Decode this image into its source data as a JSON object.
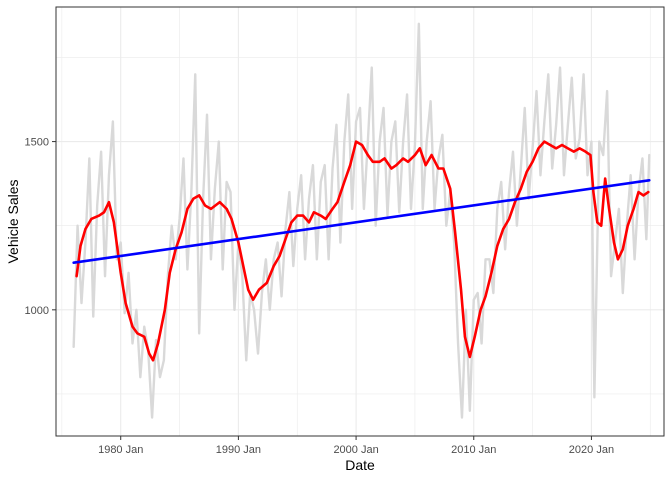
{
  "chart_data": {
    "type": "line",
    "xlabel": "Date",
    "ylabel": "Vehicle Sales",
    "x_ticks": [
      "1980 Jan",
      "1990 Jan",
      "2000 Jan",
      "2010 Jan",
      "2020 Jan"
    ],
    "x_tick_years": [
      1980,
      1990,
      2000,
      2010,
      2020
    ],
    "y_ticks": [
      1000,
      1500
    ],
    "xlim": [
      "1974-07",
      "2026-03"
    ],
    "ylim": [
      625,
      1900
    ],
    "grid": true,
    "legend": "none",
    "colors": {
      "raw": "#d9d9d9",
      "smoothed": "#ff0000",
      "trend": "#0000ff",
      "grid": "#ebebeb",
      "panel_border": "#333333"
    },
    "series": [
      {
        "role": "raw monthly",
        "points": [
          [
            "1976-01",
            890
          ],
          [
            "1976-05",
            1250
          ],
          [
            "1976-09",
            1020
          ],
          [
            "1977-01",
            1200
          ],
          [
            "1977-05",
            1450
          ],
          [
            "1977-09",
            980
          ],
          [
            "1978-01",
            1310
          ],
          [
            "1978-05",
            1470
          ],
          [
            "1978-09",
            1100
          ],
          [
            "1979-01",
            1400
          ],
          [
            "1979-05",
            1560
          ],
          [
            "1979-09",
            1150
          ],
          [
            "1980-01",
            1200
          ],
          [
            "1980-05",
            990
          ],
          [
            "1980-09",
            1110
          ],
          [
            "1981-01",
            900
          ],
          [
            "1981-05",
            1000
          ],
          [
            "1981-09",
            800
          ],
          [
            "1982-01",
            950
          ],
          [
            "1982-05",
            880
          ],
          [
            "1982-09",
            680
          ],
          [
            "1983-01",
            910
          ],
          [
            "1983-05",
            800
          ],
          [
            "1983-09",
            850
          ],
          [
            "1984-01",
            1100
          ],
          [
            "1984-05",
            1250
          ],
          [
            "1984-09",
            1150
          ],
          [
            "1985-01",
            1270
          ],
          [
            "1985-05",
            1450
          ],
          [
            "1985-09",
            1120
          ],
          [
            "1986-01",
            1350
          ],
          [
            "1986-05",
            1700
          ],
          [
            "1986-09",
            930
          ],
          [
            "1987-01",
            1330
          ],
          [
            "1987-05",
            1580
          ],
          [
            "1987-09",
            1150
          ],
          [
            "1988-01",
            1360
          ],
          [
            "1988-05",
            1500
          ],
          [
            "1988-09",
            1120
          ],
          [
            "1989-01",
            1380
          ],
          [
            "1989-05",
            1350
          ],
          [
            "1989-09",
            1000
          ],
          [
            "1990-01",
            1200
          ],
          [
            "1990-05",
            1100
          ],
          [
            "1990-09",
            850
          ],
          [
            "1991-01",
            1050
          ],
          [
            "1991-05",
            1000
          ],
          [
            "1991-09",
            870
          ],
          [
            "1992-01",
            1050
          ],
          [
            "1992-05",
            1150
          ],
          [
            "1992-09",
            1000
          ],
          [
            "1993-01",
            1150
          ],
          [
            "1993-05",
            1200
          ],
          [
            "1993-09",
            1040
          ],
          [
            "1994-01",
            1240
          ],
          [
            "1994-05",
            1350
          ],
          [
            "1994-09",
            1130
          ],
          [
            "1995-01",
            1300
          ],
          [
            "1995-05",
            1400
          ],
          [
            "1995-09",
            1150
          ],
          [
            "1996-01",
            1330
          ],
          [
            "1996-05",
            1430
          ],
          [
            "1996-09",
            1150
          ],
          [
            "1997-01",
            1380
          ],
          [
            "1997-05",
            1430
          ],
          [
            "1997-09",
            1150
          ],
          [
            "1998-01",
            1420
          ],
          [
            "1998-05",
            1550
          ],
          [
            "1998-09",
            1200
          ],
          [
            "1999-01",
            1500
          ],
          [
            "1999-05",
            1640
          ],
          [
            "1999-09",
            1300
          ],
          [
            "2000-01",
            1560
          ],
          [
            "2000-05",
            1600
          ],
          [
            "2000-09",
            1300
          ],
          [
            "2001-01",
            1500
          ],
          [
            "2001-05",
            1720
          ],
          [
            "2001-09",
            1250
          ],
          [
            "2002-01",
            1500
          ],
          [
            "2002-05",
            1600
          ],
          [
            "2002-09",
            1280
          ],
          [
            "2003-01",
            1500
          ],
          [
            "2003-05",
            1560
          ],
          [
            "2003-09",
            1290
          ],
          [
            "2004-01",
            1500
          ],
          [
            "2004-05",
            1640
          ],
          [
            "2004-09",
            1300
          ],
          [
            "2005-01",
            1490
          ],
          [
            "2005-05",
            1850
          ],
          [
            "2005-09",
            1300
          ],
          [
            "2006-01",
            1500
          ],
          [
            "2006-05",
            1620
          ],
          [
            "2006-09",
            1300
          ],
          [
            "2007-01",
            1450
          ],
          [
            "2007-05",
            1520
          ],
          [
            "2007-09",
            1250
          ],
          [
            "2008-01",
            1350
          ],
          [
            "2008-05",
            1200
          ],
          [
            "2008-09",
            900
          ],
          [
            "2009-01",
            680
          ],
          [
            "2009-05",
            1000
          ],
          [
            "2009-09",
            700
          ],
          [
            "2010-01",
            1030
          ],
          [
            "2010-05",
            1050
          ],
          [
            "2010-09",
            900
          ],
          [
            "2011-01",
            1150
          ],
          [
            "2011-05",
            1150
          ],
          [
            "2011-09",
            1050
          ],
          [
            "2012-01",
            1300
          ],
          [
            "2012-05",
            1380
          ],
          [
            "2012-09",
            1180
          ],
          [
            "2013-01",
            1350
          ],
          [
            "2013-05",
            1470
          ],
          [
            "2013-09",
            1250
          ],
          [
            "2014-01",
            1420
          ],
          [
            "2014-05",
            1600
          ],
          [
            "2014-09",
            1330
          ],
          [
            "2015-01",
            1480
          ],
          [
            "2015-05",
            1650
          ],
          [
            "2015-09",
            1400
          ],
          [
            "2016-01",
            1560
          ],
          [
            "2016-05",
            1700
          ],
          [
            "2016-09",
            1420
          ],
          [
            "2017-01",
            1550
          ],
          [
            "2017-05",
            1720
          ],
          [
            "2017-09",
            1400
          ],
          [
            "2018-01",
            1550
          ],
          [
            "2018-05",
            1690
          ],
          [
            "2018-09",
            1450
          ],
          [
            "2019-01",
            1510
          ],
          [
            "2019-05",
            1700
          ],
          [
            "2019-09",
            1400
          ],
          [
            "2020-01",
            1500
          ],
          [
            "2020-04",
            740
          ],
          [
            "2020-09",
            1500
          ],
          [
            "2021-01",
            1460
          ],
          [
            "2021-05",
            1650
          ],
          [
            "2021-09",
            1100
          ],
          [
            "2022-01",
            1200
          ],
          [
            "2022-05",
            1300
          ],
          [
            "2022-09",
            1050
          ],
          [
            "2023-01",
            1250
          ],
          [
            "2023-05",
            1400
          ],
          [
            "2023-09",
            1150
          ],
          [
            "2024-01",
            1350
          ],
          [
            "2024-05",
            1450
          ],
          [
            "2024-09",
            1210
          ],
          [
            "2024-12",
            1460
          ]
        ]
      },
      {
        "role": "moving average",
        "points": [
          [
            "1976-04",
            1100
          ],
          [
            "1976-08",
            1190
          ],
          [
            "1977-01",
            1240
          ],
          [
            "1977-07",
            1270
          ],
          [
            "1978-03",
            1280
          ],
          [
            "1978-08",
            1290
          ],
          [
            "1979-01",
            1320
          ],
          [
            "1979-06",
            1260
          ],
          [
            "1980-01",
            1110
          ],
          [
            "1980-06",
            1020
          ],
          [
            "1981-01",
            950
          ],
          [
            "1981-06",
            930
          ],
          [
            "1982-01",
            920
          ],
          [
            "1982-06",
            870
          ],
          [
            "1982-10",
            850
          ],
          [
            "1983-03",
            900
          ],
          [
            "1983-10",
            1000
          ],
          [
            "1984-03",
            1110
          ],
          [
            "1984-09",
            1180
          ],
          [
            "1985-03",
            1230
          ],
          [
            "1985-09",
            1300
          ],
          [
            "1986-03",
            1330
          ],
          [
            "1986-09",
            1340
          ],
          [
            "1987-03",
            1310
          ],
          [
            "1987-09",
            1300
          ],
          [
            "1988-06",
            1320
          ],
          [
            "1989-01",
            1300
          ],
          [
            "1989-06",
            1270
          ],
          [
            "1990-01",
            1200
          ],
          [
            "1990-06",
            1130
          ],
          [
            "1990-11",
            1060
          ],
          [
            "1991-04",
            1030
          ],
          [
            "1991-10",
            1060
          ],
          [
            "1992-06",
            1080
          ],
          [
            "1993-01",
            1130
          ],
          [
            "1993-07",
            1160
          ],
          [
            "1994-01",
            1210
          ],
          [
            "1994-07",
            1260
          ],
          [
            "1995-01",
            1280
          ],
          [
            "1995-07",
            1280
          ],
          [
            "1996-01",
            1260
          ],
          [
            "1996-06",
            1290
          ],
          [
            "1997-01",
            1280
          ],
          [
            "1997-06",
            1270
          ],
          [
            "1998-01",
            1300
          ],
          [
            "1998-06",
            1320
          ],
          [
            "1999-01",
            1380
          ],
          [
            "1999-07",
            1430
          ],
          [
            "2000-01",
            1500
          ],
          [
            "2000-07",
            1490
          ],
          [
            "2001-01",
            1460
          ],
          [
            "2001-06",
            1440
          ],
          [
            "2002-01",
            1440
          ],
          [
            "2002-06",
            1450
          ],
          [
            "2003-01",
            1420
          ],
          [
            "2003-06",
            1430
          ],
          [
            "2004-01",
            1450
          ],
          [
            "2004-06",
            1440
          ],
          [
            "2005-01",
            1460
          ],
          [
            "2005-06",
            1480
          ],
          [
            "2005-12",
            1430
          ],
          [
            "2006-06",
            1460
          ],
          [
            "2007-01",
            1420
          ],
          [
            "2007-06",
            1420
          ],
          [
            "2008-01",
            1360
          ],
          [
            "2008-06",
            1230
          ],
          [
            "2008-12",
            1060
          ],
          [
            "2009-04",
            920
          ],
          [
            "2009-09",
            860
          ],
          [
            "2010-02",
            920
          ],
          [
            "2010-08",
            1000
          ],
          [
            "2011-01",
            1040
          ],
          [
            "2011-07",
            1110
          ],
          [
            "2012-01",
            1190
          ],
          [
            "2012-07",
            1240
          ],
          [
            "2013-01",
            1270
          ],
          [
            "2013-07",
            1320
          ],
          [
            "2014-01",
            1360
          ],
          [
            "2014-07",
            1410
          ],
          [
            "2015-01",
            1440
          ],
          [
            "2015-07",
            1480
          ],
          [
            "2016-01",
            1500
          ],
          [
            "2016-07",
            1490
          ],
          [
            "2017-01",
            1480
          ],
          [
            "2017-07",
            1490
          ],
          [
            "2018-01",
            1480
          ],
          [
            "2018-07",
            1470
          ],
          [
            "2019-01",
            1480
          ],
          [
            "2019-07",
            1470
          ],
          [
            "2019-12",
            1460
          ],
          [
            "2020-03",
            1350
          ],
          [
            "2020-07",
            1260
          ],
          [
            "2020-11",
            1250
          ],
          [
            "2021-03",
            1390
          ],
          [
            "2021-07",
            1300
          ],
          [
            "2021-12",
            1200
          ],
          [
            "2022-04",
            1150
          ],
          [
            "2022-09",
            1180
          ],
          [
            "2023-02",
            1250
          ],
          [
            "2023-08",
            1300
          ],
          [
            "2024-01",
            1350
          ],
          [
            "2024-06",
            1340
          ],
          [
            "2024-11",
            1350
          ]
        ]
      },
      {
        "role": "linear trend",
        "points": [
          [
            "1976-01",
            1140
          ],
          [
            "2024-12",
            1385
          ]
        ]
      }
    ]
  }
}
